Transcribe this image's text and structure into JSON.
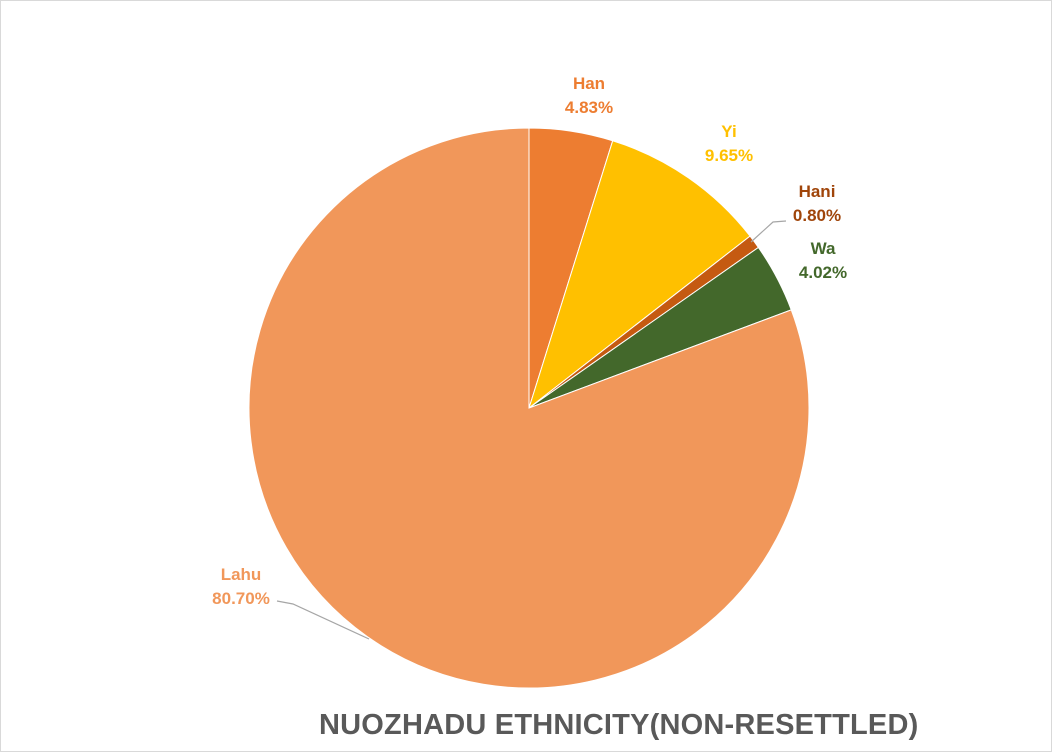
{
  "chart_data": {
    "type": "pie",
    "title": "NUOZHADU ETHNICITY(NON-RESETTLED)",
    "start_angle": 0,
    "direction": "clockwise",
    "slices": [
      {
        "label": "Han",
        "value": 4.83,
        "value_label": "4.83%",
        "color": "#ED7D31",
        "label_color": "#ED7D31"
      },
      {
        "label": "Yi",
        "value": 9.65,
        "value_label": "9.65%",
        "color": "#FFC000",
        "label_color": "#FFC000"
      },
      {
        "label": "Hani",
        "value": 0.8,
        "value_label": "0.80%",
        "color": "#C55A11",
        "label_color": "#A0450A"
      },
      {
        "label": "Wa",
        "value": 4.02,
        "value_label": "4.02%",
        "color": "#43682B",
        "label_color": "#43682B"
      },
      {
        "label": "Lahu",
        "value": 80.7,
        "value_label": "80.70%",
        "color": "#F1975A",
        "label_color": "#F1975A"
      }
    ],
    "legend": "none"
  }
}
